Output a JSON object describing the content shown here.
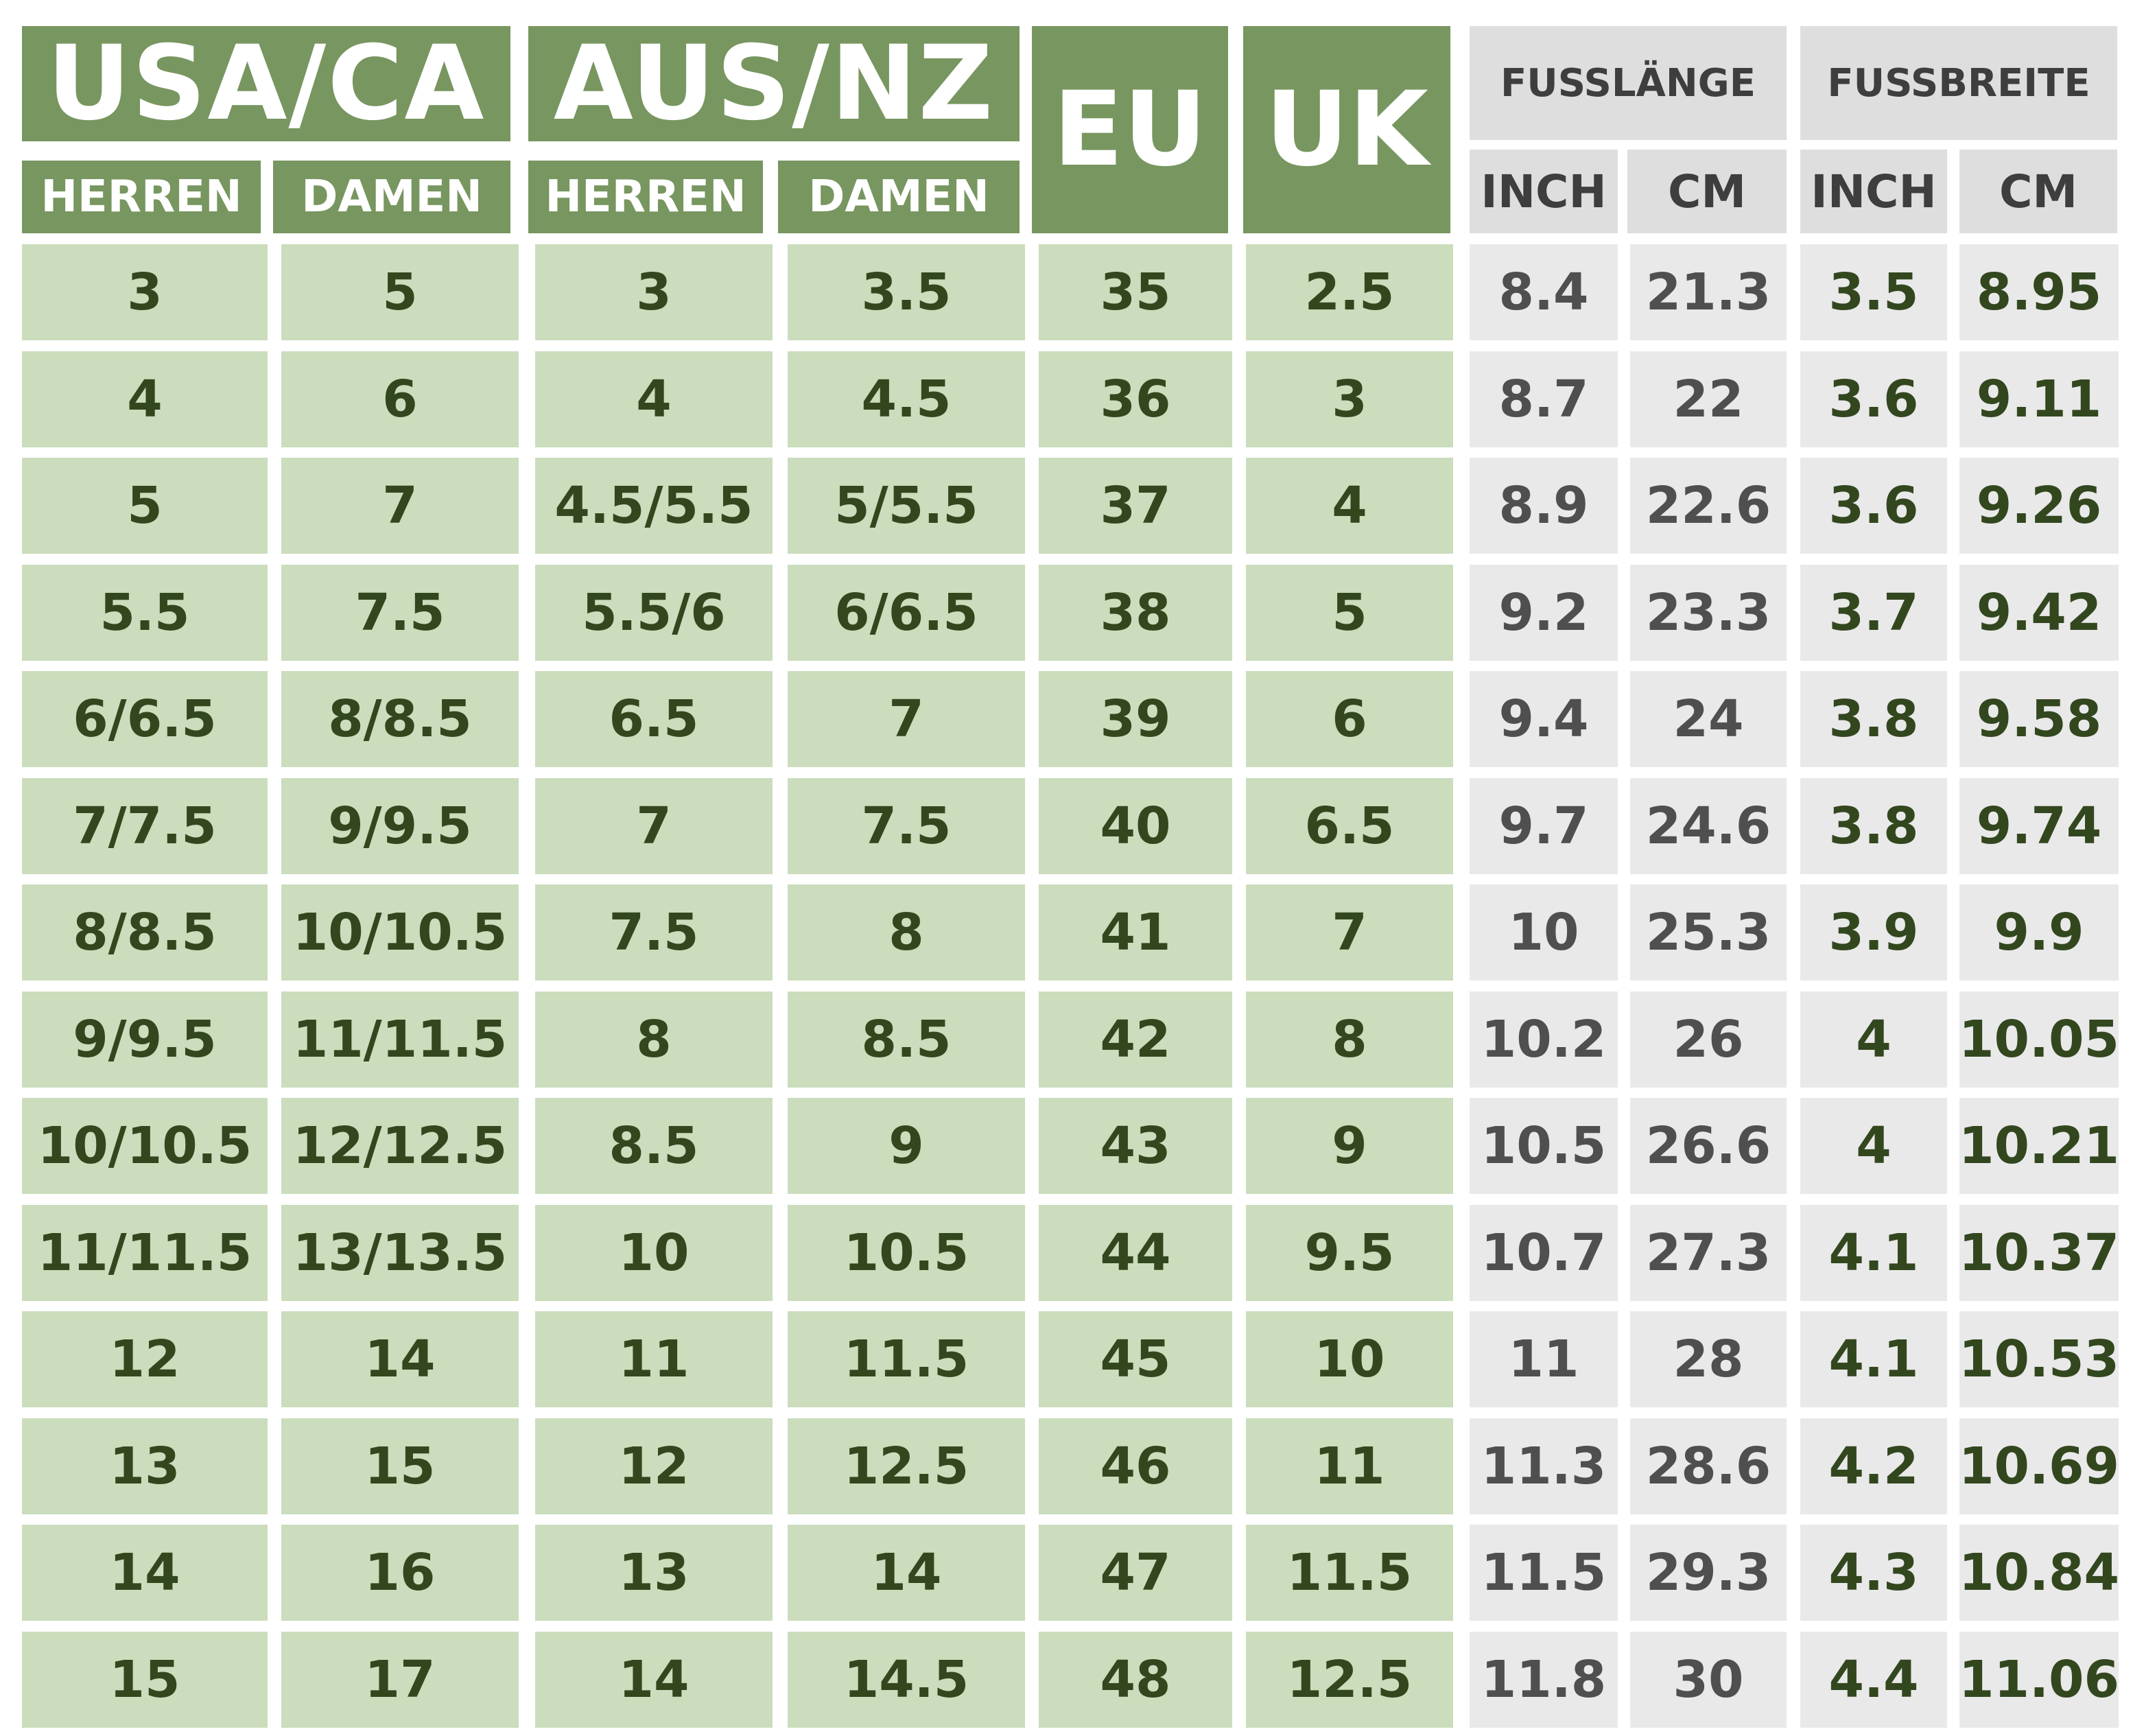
{
  "header": {
    "usa_ca": "USA/CA",
    "aus_nz": "AUS/NZ",
    "eu": "EU",
    "uk": "UK",
    "herren": "HERREN",
    "damen": "DAMEN",
    "fusslaenge": "FUSSLÄNGE",
    "fussbreite": "FUSSBREITE",
    "inch": "INCH",
    "cm": "CM"
  },
  "rows": [
    [
      "3",
      "5",
      "3",
      "3.5",
      "35",
      "2.5",
      "8.4",
      "21.3",
      "3.5",
      "8.95"
    ],
    [
      "4",
      "6",
      "4",
      "4.5",
      "36",
      "3",
      "8.7",
      "22",
      "3.6",
      "9.11"
    ],
    [
      "5",
      "7",
      "4.5/5.5",
      "5/5.5",
      "37",
      "4",
      "8.9",
      "22.6",
      "3.6",
      "9.26"
    ],
    [
      "5.5",
      "7.5",
      "5.5/6",
      "6/6.5",
      "38",
      "5",
      "9.2",
      "23.3",
      "3.7",
      "9.42"
    ],
    [
      "6/6.5",
      "8/8.5",
      "6.5",
      "7",
      "39",
      "6",
      "9.4",
      "24",
      "3.8",
      "9.58"
    ],
    [
      "7/7.5",
      "9/9.5",
      "7",
      "7.5",
      "40",
      "6.5",
      "9.7",
      "24.6",
      "3.8",
      "9.74"
    ],
    [
      "8/8.5",
      "10/10.5",
      "7.5",
      "8",
      "41",
      "7",
      "10",
      "25.3",
      "3.9",
      "9.9"
    ],
    [
      "9/9.5",
      "11/11.5",
      "8",
      "8.5",
      "42",
      "8",
      "10.2",
      "26",
      "4",
      "10.05"
    ],
    [
      "10/10.5",
      "12/12.5",
      "8.5",
      "9",
      "43",
      "9",
      "10.5",
      "26.6",
      "4",
      "10.21"
    ],
    [
      "11/11.5",
      "13/13.5",
      "10",
      "10.5",
      "44",
      "9.5",
      "10.7",
      "27.3",
      "4.1",
      "10.37"
    ],
    [
      "12",
      "14",
      "11",
      "11.5",
      "45",
      "10",
      "11",
      "28",
      "4.1",
      "10.53"
    ],
    [
      "13",
      "15",
      "12",
      "12.5",
      "46",
      "11",
      "11.3",
      "28.6",
      "4.2",
      "10.69"
    ],
    [
      "14",
      "16",
      "13",
      "14",
      "47",
      "11.5",
      "11.5",
      "29.3",
      "4.3",
      "10.84"
    ],
    [
      "15",
      "17",
      "14",
      "14.5",
      "48",
      "12.5",
      "11.8",
      "30",
      "4.4",
      "11.06"
    ]
  ],
  "colors": {
    "header_green": "#789660",
    "cell_green": "#cbddbc",
    "header_grey": "#dedede",
    "cell_grey": "#e9e9e9",
    "text_green": "#33471f",
    "text_grey": "#4f4f4f"
  }
}
